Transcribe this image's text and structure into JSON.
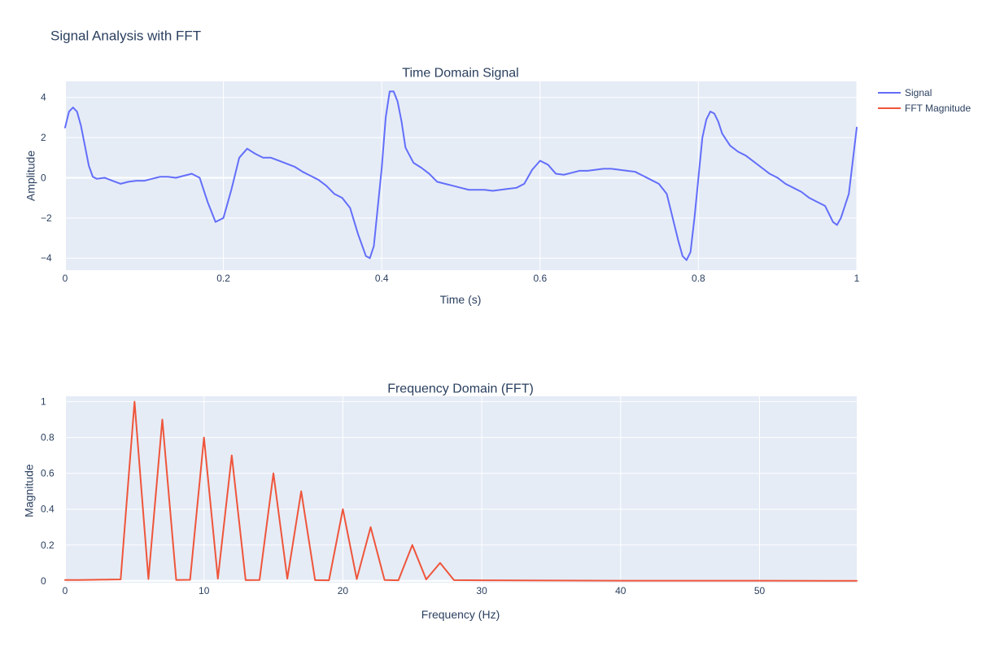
{
  "title": "Signal Analysis with FFT",
  "legend": [
    {
      "name": "Signal",
      "color": "#636efa"
    },
    {
      "name": "FFT Magnitude",
      "color": "#ef553b"
    }
  ],
  "chart_data": [
    {
      "type": "line",
      "title": "Time Domain Signal",
      "xlabel": "Time (s)",
      "ylabel": "Amplitude",
      "xlim": [
        0,
        1
      ],
      "ylim": [
        -4.6,
        4.8
      ],
      "xticks": [
        0,
        0.2,
        0.4,
        0.6,
        0.8,
        1
      ],
      "xtick_labels": [
        "0",
        "0.2",
        "0.4",
        "0.6",
        "0.8",
        "1"
      ],
      "yticks": [
        -4,
        -2,
        0,
        2,
        4
      ],
      "ytick_labels": [
        "−4",
        "−2",
        "0",
        "2",
        "4"
      ],
      "grid": true,
      "legend_position": "top-right",
      "series": [
        {
          "name": "Signal",
          "color": "#636efa",
          "x": [
            0,
            0.005,
            0.01,
            0.015,
            0.02,
            0.025,
            0.03,
            0.035,
            0.04,
            0.05,
            0.06,
            0.07,
            0.08,
            0.09,
            0.1,
            0.11,
            0.12,
            0.13,
            0.14,
            0.15,
            0.16,
            0.17,
            0.18,
            0.19,
            0.2,
            0.21,
            0.22,
            0.23,
            0.24,
            0.25,
            0.26,
            0.27,
            0.28,
            0.29,
            0.3,
            0.31,
            0.32,
            0.33,
            0.34,
            0.35,
            0.36,
            0.37,
            0.38,
            0.385,
            0.39,
            0.4,
            0.405,
            0.41,
            0.415,
            0.42,
            0.425,
            0.43,
            0.44,
            0.45,
            0.46,
            0.47,
            0.48,
            0.49,
            0.5,
            0.51,
            0.52,
            0.53,
            0.54,
            0.55,
            0.56,
            0.57,
            0.58,
            0.59,
            0.6,
            0.61,
            0.62,
            0.63,
            0.64,
            0.65,
            0.66,
            0.67,
            0.68,
            0.69,
            0.7,
            0.71,
            0.72,
            0.73,
            0.74,
            0.75,
            0.76,
            0.77,
            0.775,
            0.78,
            0.785,
            0.79,
            0.795,
            0.8,
            0.805,
            0.81,
            0.815,
            0.82,
            0.825,
            0.83,
            0.84,
            0.85,
            0.86,
            0.87,
            0.88,
            0.89,
            0.9,
            0.91,
            0.92,
            0.93,
            0.94,
            0.95,
            0.96,
            0.97,
            0.975,
            0.98,
            0.99,
            1.0
          ],
          "y": [
            2.5,
            3.3,
            3.5,
            3.3,
            2.6,
            1.6,
            0.6,
            0.05,
            -0.05,
            0.0,
            -0.15,
            -0.3,
            -0.2,
            -0.15,
            -0.15,
            -0.05,
            0.05,
            0.05,
            0.0,
            0.1,
            0.2,
            0.0,
            -1.2,
            -2.2,
            -2.0,
            -0.6,
            1.0,
            1.45,
            1.2,
            1.0,
            1.0,
            0.85,
            0.7,
            0.55,
            0.3,
            0.1,
            -0.1,
            -0.4,
            -0.8,
            -1.0,
            -1.5,
            -2.8,
            -3.9,
            -4.0,
            -3.4,
            0.5,
            3.0,
            4.3,
            4.3,
            3.8,
            2.8,
            1.5,
            0.75,
            0.5,
            0.2,
            -0.2,
            -0.3,
            -0.4,
            -0.5,
            -0.6,
            -0.6,
            -0.6,
            -0.65,
            -0.6,
            -0.55,
            -0.5,
            -0.3,
            0.4,
            0.85,
            0.65,
            0.2,
            0.15,
            0.25,
            0.35,
            0.35,
            0.4,
            0.45,
            0.45,
            0.4,
            0.35,
            0.3,
            0.1,
            -0.1,
            -0.3,
            -0.8,
            -2.4,
            -3.2,
            -3.9,
            -4.1,
            -3.7,
            -2.0,
            0.0,
            2.0,
            2.9,
            3.3,
            3.2,
            2.8,
            2.2,
            1.6,
            1.3,
            1.1,
            0.8,
            0.5,
            0.2,
            0.0,
            -0.3,
            -0.5,
            -0.7,
            -1.0,
            -1.2,
            -1.4,
            -2.2,
            -2.35,
            -2.0,
            -0.8,
            2.5
          ]
        }
      ]
    },
    {
      "type": "line",
      "title": "Frequency Domain (FFT)",
      "xlabel": "Frequency (Hz)",
      "ylabel": "Magnitude",
      "xlim": [
        0,
        57
      ],
      "ylim": [
        -0.01,
        1.03
      ],
      "xticks": [
        0,
        10,
        20,
        30,
        40,
        50
      ],
      "xtick_labels": [
        "0",
        "10",
        "20",
        "30",
        "40",
        "50"
      ],
      "yticks": [
        0,
        0.2,
        0.4,
        0.6,
        0.8,
        1
      ],
      "ytick_labels": [
        "0",
        "0.2",
        "0.4",
        "0.6",
        "0.8",
        "1"
      ],
      "grid": true,
      "series": [
        {
          "name": "FFT Magnitude",
          "color": "#ef553b",
          "x": [
            0,
            1,
            2,
            3,
            4,
            5,
            6,
            7,
            8,
            9,
            10,
            11,
            12,
            13,
            14,
            15,
            16,
            17,
            18,
            19,
            20,
            21,
            22,
            23,
            24,
            25,
            26,
            27,
            28,
            30,
            35,
            40,
            45,
            50,
            57
          ],
          "y": [
            0.005,
            0.005,
            0.006,
            0.007,
            0.008,
            1.0,
            0.01,
            0.9,
            0.005,
            0.006,
            0.8,
            0.012,
            0.7,
            0.004,
            0.005,
            0.6,
            0.012,
            0.5,
            0.004,
            0.003,
            0.4,
            0.01,
            0.3,
            0.005,
            0.003,
            0.2,
            0.008,
            0.1,
            0.004,
            0.003,
            0.002,
            0.001,
            0.001,
            0.001,
            0.0
          ]
        }
      ]
    }
  ]
}
